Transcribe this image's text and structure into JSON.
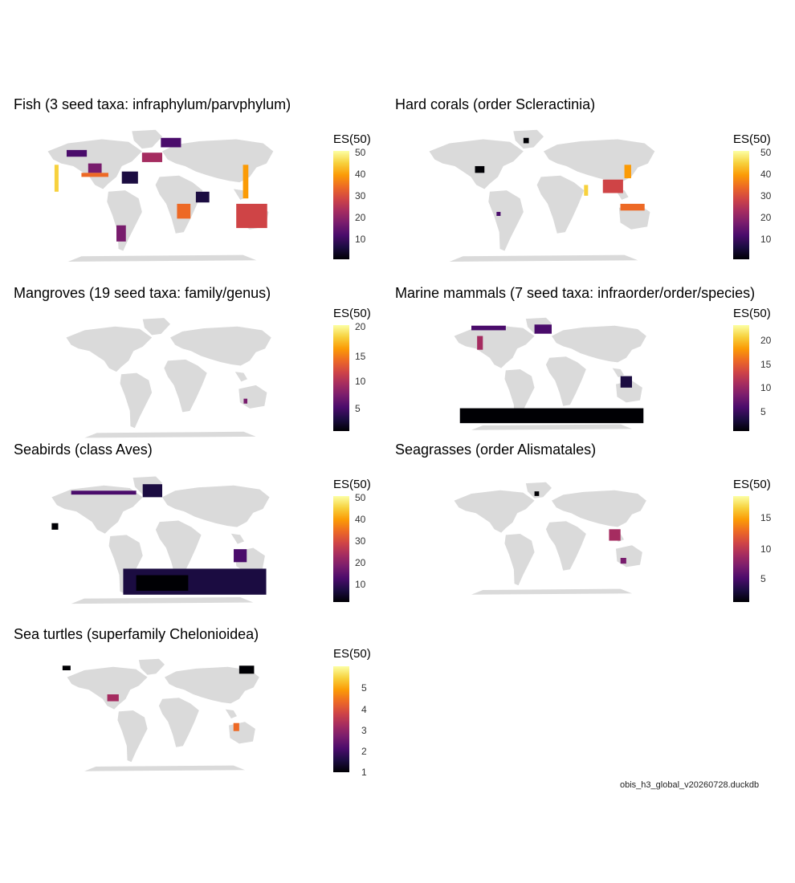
{
  "colors": {
    "land": "#dadada",
    "background": "#ffffff",
    "scale": [
      "#000004",
      "#1b0c41",
      "#4a0c6b",
      "#781c6d",
      "#a52c60",
      "#cf4446",
      "#ed6925",
      "#fb9b06",
      "#f7d13d",
      "#fcffa4"
    ]
  },
  "legend_title": "ES(50)",
  "panels": [
    {
      "title": "Fish (3 seed taxa: infraphylum/parvphylum)",
      "legend_ticks": [
        "50",
        "40",
        "30",
        "20",
        "10"
      ]
    },
    {
      "title": "Hard corals (order Scleractinia)",
      "legend_ticks": [
        "50",
        "40",
        "30",
        "20",
        "10"
      ]
    },
    {
      "title": "Mangroves (19 seed taxa: family/genus)",
      "legend_ticks": [
        "20",
        "15",
        "10",
        "5"
      ]
    },
    {
      "title": "Marine mammals (7 seed taxa: infraorder/order/species)",
      "legend_ticks": [
        "20",
        "15",
        "10",
        "5"
      ]
    },
    {
      "title": "Seabirds (class Aves)",
      "legend_ticks": [
        "50",
        "40",
        "30",
        "20",
        "10"
      ]
    },
    {
      "title": "Seagrasses (order Alismatales)",
      "legend_ticks": [
        "15",
        "10",
        "5"
      ]
    },
    {
      "title": "Sea turtles (superfamily Chelonioidea)",
      "legend_ticks": [
        "5",
        "4",
        "3",
        "2",
        "1"
      ]
    }
  ],
  "caption": "obis_h3_global_v20260728.duckdb"
}
